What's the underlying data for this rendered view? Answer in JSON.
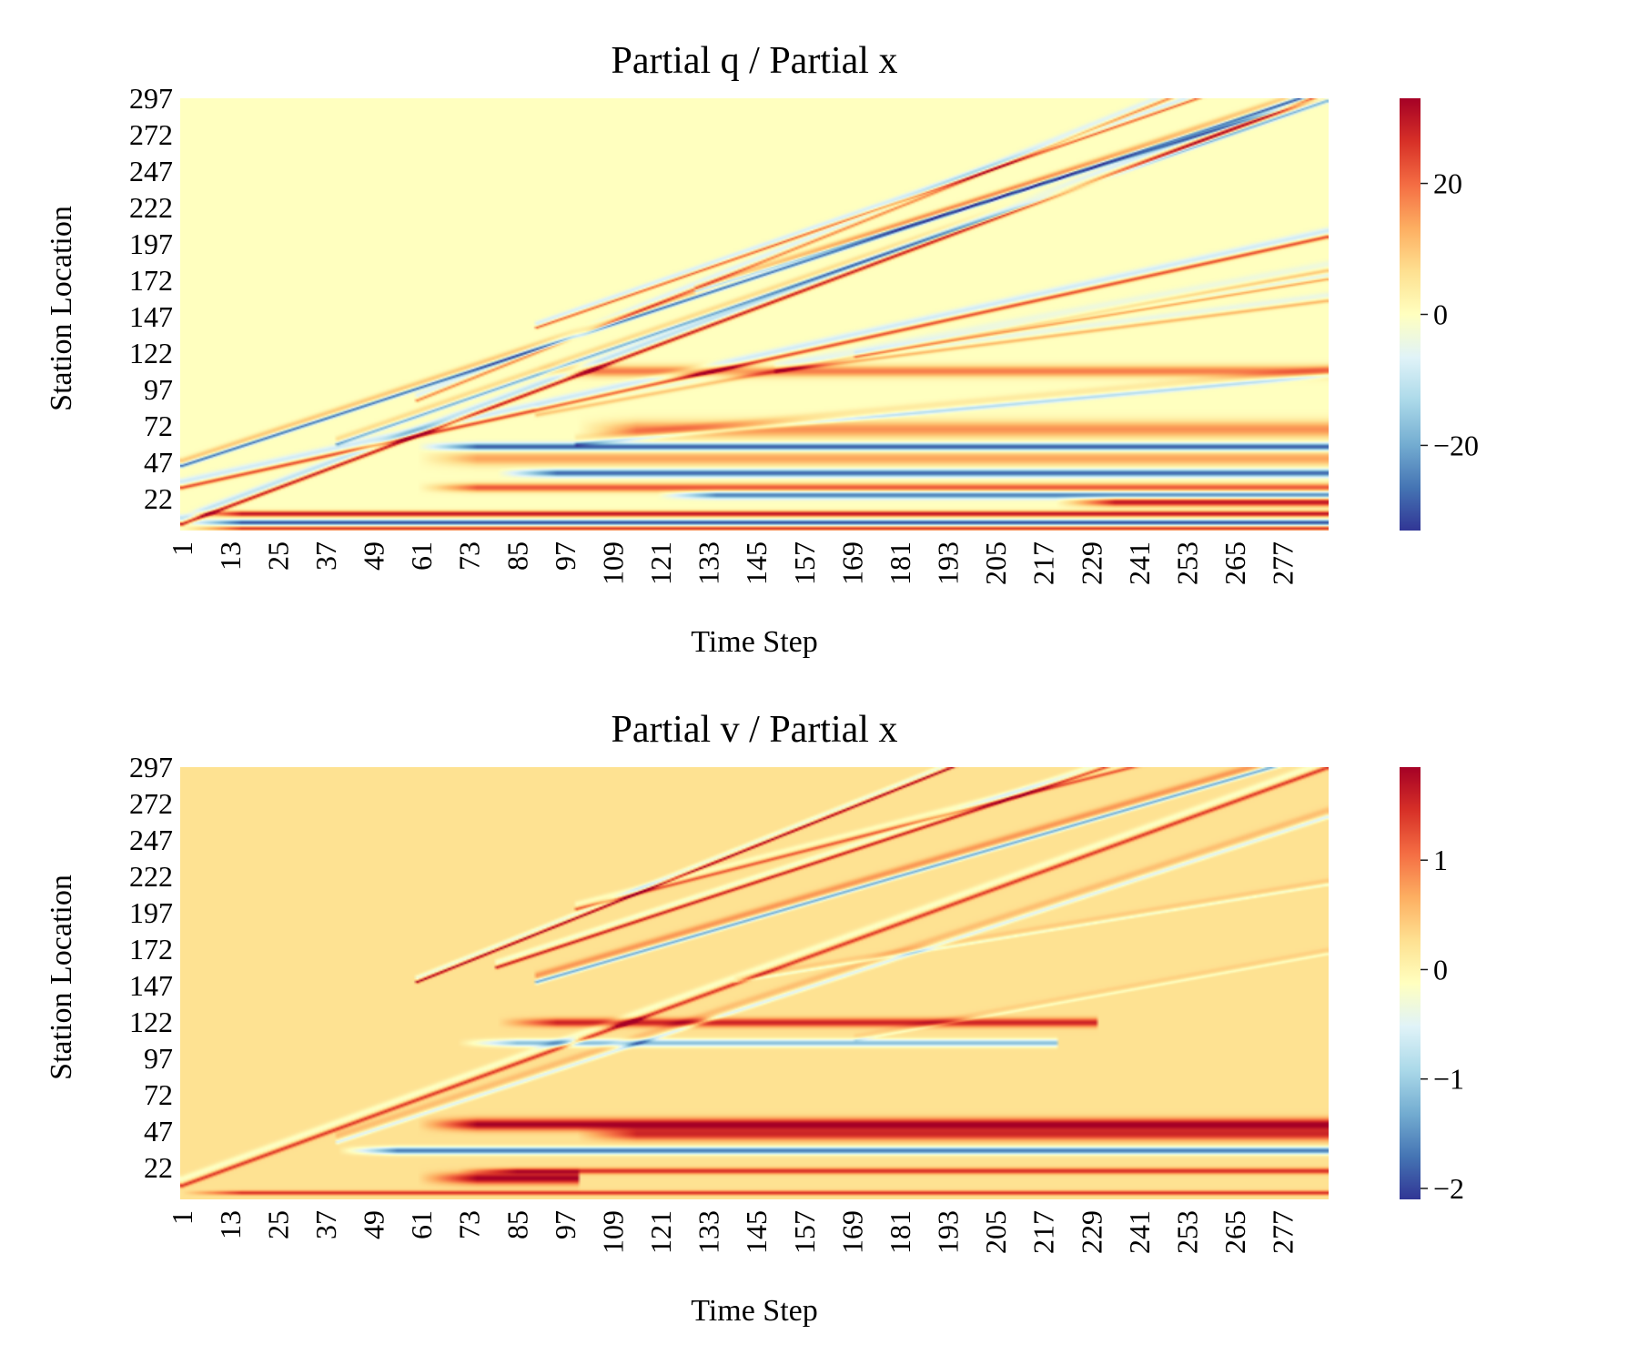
{
  "chart_data": [
    {
      "type": "heatmap",
      "title": "Partial q / Partial x",
      "xlabel": "Time Step",
      "ylabel": "Station Location",
      "x_ticks": [
        "1",
        "13",
        "25",
        "37",
        "49",
        "61",
        "73",
        "85",
        "97",
        "109",
        "121",
        "133",
        "145",
        "157",
        "169",
        "181",
        "193",
        "205",
        "217",
        "229",
        "241",
        "253",
        "265",
        "277"
      ],
      "y_ticks": [
        "297",
        "272",
        "247",
        "222",
        "197",
        "172",
        "147",
        "122",
        "97",
        "72",
        "47",
        "22"
      ],
      "xlim": [
        1,
        288
      ],
      "ylim": [
        1,
        297
      ],
      "colorbar": {
        "ticks": [
          20,
          0,
          -20
        ],
        "tick_labels": [
          "20",
          "0",
          "−20"
        ],
        "min": -33,
        "max": 33
      },
      "colormap": [
        "#313695",
        "#4575b4",
        "#74add1",
        "#abd9e9",
        "#e0f3f8",
        "#ffffbf",
        "#fee090",
        "#fdae61",
        "#f46d43",
        "#d73027",
        "#a50026"
      ],
      "features": {
        "diagonal_waves": [
          {
            "t0": 1,
            "s0": 5,
            "slope": 1.03,
            "value": 30,
            "width": 1.4
          },
          {
            "t0": 1,
            "s0": 45,
            "slope": 0.9,
            "value": -28,
            "width": 1.2
          },
          {
            "t0": 1,
            "s0": 30,
            "slope": 0.6,
            "value": 24,
            "width": 1.4
          },
          {
            "t0": 40,
            "s0": 60,
            "slope": 0.95,
            "value": -20,
            "width": 1.2
          },
          {
            "t0": 60,
            "s0": 90,
            "slope": 1.1,
            "value": 18,
            "width": 1.2
          },
          {
            "t0": 90,
            "s0": 140,
            "slope": 0.95,
            "value": 22,
            "width": 1.0
          },
          {
            "t0": 130,
            "s0": 165,
            "slope": 0.85,
            "value": -22,
            "width": 1.1
          },
          {
            "t0": 150,
            "s0": 110,
            "slope": 0.35,
            "value": 12,
            "width": 1.3
          },
          {
            "t0": 90,
            "s0": 80,
            "slope": 0.5,
            "value": 10,
            "width": 1.5
          },
          {
            "t0": 170,
            "s0": 120,
            "slope": 0.45,
            "value": 14,
            "width": 1.0
          },
          {
            "t0": 100,
            "s0": 60,
            "slope": 0.25,
            "value": -12,
            "width": 1.5
          }
        ],
        "horizontal_bands": [
          {
            "t0": 90,
            "t1": 288,
            "s": 110,
            "value": 18,
            "width": 4
          },
          {
            "t0": 100,
            "t1": 288,
            "s": 70,
            "value": 16,
            "width": 6
          },
          {
            "t0": 60,
            "t1": 288,
            "s": 58,
            "value": -30,
            "width": 2.5
          },
          {
            "t0": 60,
            "t1": 288,
            "s": 50,
            "value": 14,
            "width": 5
          },
          {
            "t0": 80,
            "t1": 288,
            "s": 40,
            "value": -28,
            "width": 2.5
          },
          {
            "t0": 60,
            "t1": 288,
            "s": 30,
            "value": 22,
            "width": 3
          },
          {
            "t0": 120,
            "t1": 288,
            "s": 25,
            "value": -26,
            "width": 2.5
          },
          {
            "t0": 220,
            "t1": 288,
            "s": 20,
            "value": 30,
            "width": 3
          },
          {
            "t0": 1,
            "t1": 288,
            "s": 12,
            "value": 30,
            "width": 2
          },
          {
            "t0": 1,
            "t1": 288,
            "s": 6,
            "value": -30,
            "width": 1.8
          },
          {
            "t0": 1,
            "t1": 288,
            "s": 2,
            "value": 26,
            "width": 1.5
          }
        ]
      }
    },
    {
      "type": "heatmap",
      "title": "Partial v / Partial x",
      "xlabel": "Time Step",
      "ylabel": "Station Location",
      "x_ticks": [
        "1",
        "13",
        "25",
        "37",
        "49",
        "61",
        "73",
        "85",
        "97",
        "109",
        "121",
        "133",
        "145",
        "157",
        "169",
        "181",
        "193",
        "205",
        "217",
        "229",
        "241",
        "253",
        "265",
        "277"
      ],
      "y_ticks": [
        "297",
        "272",
        "247",
        "222",
        "197",
        "172",
        "147",
        "122",
        "97",
        "72",
        "47",
        "22"
      ],
      "xlim": [
        1,
        288
      ],
      "ylim": [
        1,
        297
      ],
      "colorbar": {
        "ticks": [
          1,
          0,
          -1,
          -2
        ],
        "tick_labels": [
          "1",
          "0",
          "−1",
          "−2"
        ],
        "min": -2.1,
        "max": 1.85
      },
      "colormap": [
        "#313695",
        "#4575b4",
        "#74add1",
        "#abd9e9",
        "#e0f3f8",
        "#ffffbf",
        "#fee090",
        "#fdae61",
        "#f46d43",
        "#d73027",
        "#a50026"
      ],
      "base_value": 0.25,
      "features": {
        "diagonal_waves": [
          {
            "t0": 1,
            "s0": 10,
            "slope": 1.0,
            "value": 1.2,
            "width": 1.5
          },
          {
            "t0": 60,
            "s0": 150,
            "slope": 1.1,
            "value": 1.7,
            "width": 1.0
          },
          {
            "t0": 80,
            "s0": 160,
            "slope": 0.9,
            "value": 1.4,
            "width": 1.2
          },
          {
            "t0": 90,
            "s0": 150,
            "slope": 0.8,
            "value": -1.6,
            "width": 1.5
          },
          {
            "t0": 40,
            "s0": 40,
            "slope": 0.9,
            "value": -0.8,
            "width": 1.5
          },
          {
            "t0": 100,
            "s0": 200,
            "slope": 0.7,
            "value": 1.0,
            "width": 1.2
          },
          {
            "t0": 140,
            "s0": 150,
            "slope": 0.45,
            "value": -0.5,
            "width": 1.0
          },
          {
            "t0": 170,
            "s0": 110,
            "slope": 0.5,
            "value": -0.4,
            "width": 1.0
          }
        ],
        "horizontal_bands": [
          {
            "t0": 80,
            "t1": 230,
            "s": 122,
            "value": 1.3,
            "width": 3
          },
          {
            "t0": 70,
            "t1": 220,
            "s": 108,
            "value": -1.4,
            "width": 2.5
          },
          {
            "t0": 60,
            "t1": 288,
            "s": 52,
            "value": 1.6,
            "width": 4
          },
          {
            "t0": 100,
            "t1": 288,
            "s": 45,
            "value": 1.2,
            "width": 4
          },
          {
            "t0": 40,
            "t1": 288,
            "s": 34,
            "value": -1.9,
            "width": 2.5
          },
          {
            "t0": 70,
            "t1": 288,
            "s": 20,
            "value": 1.2,
            "width": 2
          },
          {
            "t0": 60,
            "t1": 100,
            "s": 15,
            "value": 1.6,
            "width": 4
          },
          {
            "t0": 1,
            "t1": 288,
            "s": 5,
            "value": 1.2,
            "width": 1.5
          }
        ]
      }
    }
  ]
}
